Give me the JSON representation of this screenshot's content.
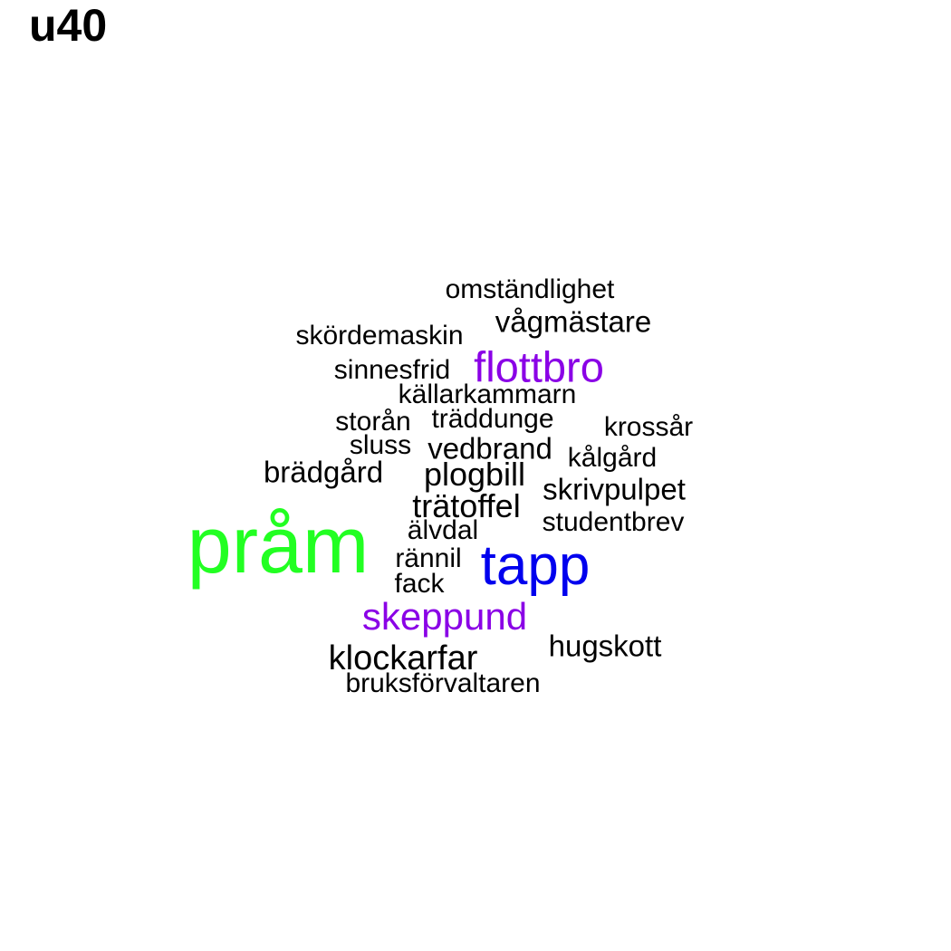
{
  "title": "u40",
  "colors": {
    "default": "#000000",
    "green": "#22ff22",
    "blue": "#0000ee",
    "purple": "#8a00e6"
  },
  "words": [
    {
      "text": "omständlighet",
      "color": "#000000"
    },
    {
      "text": "vågmästare",
      "color": "#000000"
    },
    {
      "text": "skördemaskin",
      "color": "#000000"
    },
    {
      "text": "flottbro",
      "color": "#8a00e6"
    },
    {
      "text": "sinnesfrid",
      "color": "#000000"
    },
    {
      "text": "källarkammarn",
      "color": "#000000"
    },
    {
      "text": "storån",
      "color": "#000000"
    },
    {
      "text": "träddunge",
      "color": "#000000"
    },
    {
      "text": "krossår",
      "color": "#000000"
    },
    {
      "text": "sluss",
      "color": "#000000"
    },
    {
      "text": "vedbrand",
      "color": "#000000"
    },
    {
      "text": "kålgård",
      "color": "#000000"
    },
    {
      "text": "brädgård",
      "color": "#000000"
    },
    {
      "text": "plogbill",
      "color": "#000000"
    },
    {
      "text": "skrivpulpet",
      "color": "#000000"
    },
    {
      "text": "trätoffel",
      "color": "#000000"
    },
    {
      "text": "studentbrev",
      "color": "#000000"
    },
    {
      "text": "pråm",
      "color": "#22ff22"
    },
    {
      "text": "älvdal",
      "color": "#000000"
    },
    {
      "text": "rännil",
      "color": "#000000"
    },
    {
      "text": "tapp",
      "color": "#0000ee"
    },
    {
      "text": "fack",
      "color": "#000000"
    },
    {
      "text": "skeppund",
      "color": "#8a00e6"
    },
    {
      "text": "hugskott",
      "color": "#000000"
    },
    {
      "text": "klockarfar",
      "color": "#000000"
    },
    {
      "text": "bruksförvaltaren",
      "color": "#000000"
    }
  ]
}
